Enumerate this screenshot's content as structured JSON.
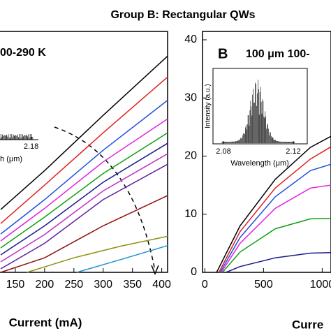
{
  "title": "Group B: Rectangular QWs",
  "chart_data": [
    {
      "type": "line",
      "annotation": "00-290 K",
      "xlabel": "Current (mA)",
      "xlim": [
        100,
        410
      ],
      "ylim": [
        0,
        40
      ],
      "xticks": [
        150,
        200,
        250,
        300,
        350,
        400
      ],
      "inset": {
        "xlabel": "th (μm)",
        "xlim": [
          2.08,
          2.19
        ],
        "xticks": [
          2.18
        ]
      },
      "series": [
        {
          "color": "#000000",
          "x": [
            125,
            200,
            300,
            410
          ],
          "values": [
            10.8,
            17.5,
            27,
            37.2
          ]
        },
        {
          "color": "#e02020",
          "x": [
            125,
            200,
            300,
            410
          ],
          "values": [
            8.4,
            15,
            24,
            33.6
          ]
        },
        {
          "color": "#2050e0",
          "x": [
            125,
            200,
            300,
            410
          ],
          "values": [
            6.6,
            12.5,
            21,
            29.6
          ]
        },
        {
          "color": "#e020e0",
          "x": [
            125,
            200,
            300,
            410
          ],
          "values": [
            5.4,
            11,
            19,
            26.4
          ]
        },
        {
          "color": "#10a010",
          "x": [
            125,
            200,
            300,
            410
          ],
          "values": [
            4.2,
            9.5,
            17,
            24
          ]
        },
        {
          "color": "#1a1a90",
          "x": [
            125,
            200,
            300,
            410
          ],
          "values": [
            3,
            8,
            15.5,
            22.2
          ]
        },
        {
          "color": "#c030c0",
          "x": [
            125,
            200,
            300,
            410
          ],
          "values": [
            1.8,
            6.5,
            14,
            20.4
          ]
        },
        {
          "color": "#6020a0",
          "x": [
            125,
            200,
            300,
            410
          ],
          "values": [
            0.6,
            5,
            12.5,
            18.6
          ]
        },
        {
          "color": "#901010",
          "x": [
            125,
            200,
            300,
            410
          ],
          "values": [
            0,
            2.5,
            8,
            13.2
          ]
        },
        {
          "color": "#909010",
          "x": [
            170,
            250,
            330,
            410
          ],
          "values": [
            0,
            2.5,
            4.5,
            6.2
          ]
        },
        {
          "color": "#2090d0",
          "x": [
            255,
            330,
            410
          ],
          "values": [
            0,
            2.2,
            4.6
          ]
        }
      ]
    },
    {
      "type": "line",
      "label": "B",
      "annotation": "100 μm 100-",
      "xlabel": "Curre",
      "xlim": [
        -20,
        1075
      ],
      "ylim": [
        0,
        40
      ],
      "xticks": [
        0,
        500,
        1000
      ],
      "yticks": [
        0,
        10,
        20,
        30,
        40
      ],
      "inset": {
        "ylabel": "Intensity (a.u.)",
        "xlabel": "Wavelength (μm)",
        "xlim": [
          2.074,
          2.128
        ],
        "xticks": [
          2.08,
          2.12
        ]
      },
      "series": [
        {
          "color": "#000000",
          "x": [
            100,
            300,
            600,
            900,
            1075
          ],
          "values": [
            0,
            8,
            16,
            21.5,
            23.4
          ]
        },
        {
          "color": "#e02020",
          "x": [
            120,
            300,
            600,
            900,
            1075
          ],
          "values": [
            0,
            7,
            14.5,
            19.5,
            21.6
          ]
        },
        {
          "color": "#2050e0",
          "x": [
            130,
            300,
            600,
            900,
            1075
          ],
          "values": [
            0,
            6,
            13,
            17.5,
            18.6
          ]
        },
        {
          "color": "#e020e0",
          "x": [
            140,
            300,
            600,
            900,
            1075
          ],
          "values": [
            0,
            5,
            11,
            14.5,
            15
          ]
        },
        {
          "color": "#10a010",
          "x": [
            150,
            300,
            600,
            900,
            1075
          ],
          "values": [
            0,
            3.5,
            7.5,
            9.2,
            9.3
          ]
        },
        {
          "color": "#1a1a90",
          "x": [
            180,
            300,
            600,
            900,
            1075
          ],
          "values": [
            0,
            1,
            2.5,
            3.3,
            3.4
          ]
        }
      ]
    }
  ]
}
